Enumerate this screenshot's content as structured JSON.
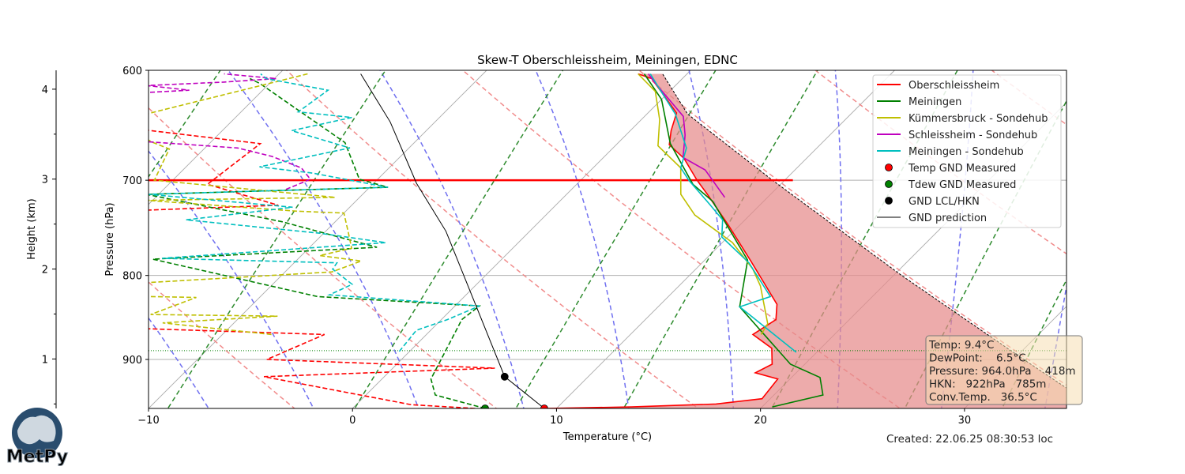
{
  "chart_data": {
    "type": "line",
    "subtype": "skew-t",
    "title": "Skew-T Oberschleissheim, Meiningen, EDNC",
    "xlabel": "Temperature (°C)",
    "ylabel": "Pressure (hPa)",
    "xlim": [
      -10,
      35
    ],
    "ylim": [
      964,
      600
    ],
    "x_ticks": [
      -10,
      0,
      10,
      20,
      30
    ],
    "y_ticks": [
      600,
      700,
      800,
      900
    ],
    "height_axis": {
      "label": "Height (km)",
      "range": [
        0.45,
        4.21
      ],
      "ticks": [
        1,
        2,
        3,
        4
      ],
      "minor_ticks": [
        0.5,
        1.5,
        2.5,
        3.5
      ]
    },
    "legend_position": "top-right",
    "series": [
      {
        "name": "Oberschleissheim",
        "color": "#ff0000",
        "temperature": [
          [
            964,
            9.4
          ],
          [
            962,
            13.6
          ],
          [
            958,
            17.6
          ],
          [
            951,
            19.6
          ],
          [
            925,
            19.4
          ],
          [
            917,
            18.0
          ],
          [
            906,
            18.4
          ],
          [
            886,
            17.6
          ],
          [
            869,
            16.0
          ],
          [
            851,
            16.4
          ],
          [
            833,
            15.7
          ],
          [
            784,
            12.3
          ],
          [
            745,
            9.4
          ],
          [
            714,
            6.9
          ],
          [
            700,
            5.7
          ],
          [
            679,
            4.0
          ],
          [
            666,
            2.6
          ],
          [
            653,
            2.0
          ],
          [
            637,
            1.4
          ],
          [
            607,
            -1.5
          ],
          [
            603,
            -2.4
          ]
        ],
        "dewpoint": [
          [
            964,
            6.0
          ],
          [
            959,
            2.7
          ],
          [
            922,
            -5.9
          ],
          [
            911,
            5.0
          ],
          [
            900,
            -6.6
          ],
          [
            869,
            -5.0
          ],
          [
            862,
            -14.0
          ],
          [
            793,
            -18.3
          ],
          [
            730,
            -19.8
          ],
          [
            725,
            -13.6
          ],
          [
            704,
            -18.1
          ],
          [
            665,
            -17.5
          ],
          [
            652,
            -24.0
          ]
        ]
      },
      {
        "name": "Meiningen",
        "color": "#008000",
        "temperature": [
          [
            962,
            20.5
          ],
          [
            946,
            22.4
          ],
          [
            923,
            21.4
          ],
          [
            906,
            19.3
          ],
          [
            867,
            16.4
          ],
          [
            836,
            14.0
          ],
          [
            783,
            12.1
          ],
          [
            721,
            7.5
          ],
          [
            704,
            5.7
          ],
          [
            665,
            2.6
          ],
          [
            625,
            0.0
          ],
          [
            603,
            -2.1
          ]
        ],
        "dewpoint": [
          [
            964,
            6.5
          ],
          [
            946,
            3.4
          ],
          [
            925,
            2.4
          ],
          [
            851,
            1.0
          ],
          [
            835,
            1.2
          ],
          [
            824,
            -7.2
          ],
          [
            782,
            -17.1
          ],
          [
            769,
            -6.7
          ],
          [
            742,
            -12.6
          ],
          [
            714,
            -20.6
          ],
          [
            707,
            -9.1
          ],
          [
            699,
            -10.9
          ],
          [
            664,
            -13.4
          ],
          [
            611,
            -20.5
          ],
          [
            607,
            -21.2
          ]
        ]
      },
      {
        "name": "Kümmersbruck - Sondehub",
        "color": "#bfbf00",
        "temperature": [
          [
            869,
            16.4
          ],
          [
            856,
            16.2
          ],
          [
            812,
            14.0
          ],
          [
            793,
            12.8
          ],
          [
            764,
            10.5
          ],
          [
            735,
            7.3
          ],
          [
            714,
            5.6
          ],
          [
            688,
            4.3
          ],
          [
            667,
            2.1
          ],
          [
            643,
            0.9
          ],
          [
            618,
            -0.7
          ],
          [
            603,
            -2.4
          ]
        ],
        "dewpoint": [
          [
            869,
            -7.6
          ],
          [
            855,
            -13.5
          ],
          [
            847,
            -8.2
          ],
          [
            845,
            -14.5
          ],
          [
            825,
            -13.1
          ],
          [
            824,
            -15.4
          ],
          [
            818,
            -17.2
          ],
          [
            808,
            -16.2
          ],
          [
            796,
            -7.7
          ],
          [
            784,
            -6.8
          ],
          [
            778,
            -9.1
          ],
          [
            770,
            -7.9
          ],
          [
            752,
            -8.9
          ],
          [
            733,
            -10.0
          ],
          [
            731,
            -12.4
          ],
          [
            720,
            -20.3
          ],
          [
            717,
            -11.2
          ],
          [
            700,
            -20.9
          ],
          [
            670,
            -21.7
          ],
          [
            664,
            -22.8
          ],
          [
            645,
            -25.7
          ],
          [
            607,
            -19.3
          ],
          [
            603,
            -18.6
          ]
        ]
      },
      {
        "name": "Schleissheim - Sondehub",
        "color": "#bf00bf",
        "temperature": [
          [
            717,
            7.9
          ],
          [
            690,
            5.6
          ],
          [
            678,
            3.9
          ],
          [
            657,
            2.9
          ],
          [
            640,
            1.9
          ],
          [
            610,
            -1.2
          ],
          [
            603,
            -1.9
          ]
        ],
        "dewpoint": [
          [
            709,
            -14.0
          ],
          [
            699,
            -13.3
          ],
          [
            688,
            -14.3
          ],
          [
            677,
            -16.3
          ],
          [
            669,
            -18.4
          ],
          [
            663,
            -23.3
          ],
          [
            638,
            -26.1
          ],
          [
            619,
            -25.6
          ],
          [
            617,
            -23.6
          ],
          [
            613,
            -25.9
          ],
          [
            610,
            -22.3
          ],
          [
            607,
            -19.9
          ],
          [
            603,
            -22.7
          ]
        ]
      },
      {
        "name": "Meiningen - Sondehub",
        "color": "#00bfbf",
        "temperature": [
          [
            891,
            19.0
          ],
          [
            836,
            14.0
          ],
          [
            824,
            15.0
          ],
          [
            786,
            12.3
          ],
          [
            758,
            9.7
          ],
          [
            740,
            8.9
          ],
          [
            724,
            7.5
          ],
          [
            700,
            5.3
          ],
          [
            688,
            4.3
          ],
          [
            669,
            3.6
          ],
          [
            638,
            1.4
          ],
          [
            616,
            -0.6
          ],
          [
            603,
            -1.8
          ]
        ],
        "dewpoint": [
          [
            890,
            -0.5
          ],
          [
            864,
            -0.7
          ],
          [
            851,
            0.3
          ],
          [
            835,
            1.2
          ],
          [
            822,
            -6.7
          ],
          [
            810,
            -6.1
          ],
          [
            793,
            -7.8
          ],
          [
            786,
            -7.9
          ],
          [
            781,
            -16.7
          ],
          [
            764,
            -6.5
          ],
          [
            754,
            -10.2
          ],
          [
            740,
            -17.4
          ],
          [
            727,
            -12.8
          ],
          [
            714,
            -20.5
          ],
          [
            707,
            -9.1
          ],
          [
            693,
            -13.5
          ],
          [
            687,
            -16.4
          ],
          [
            669,
            -12.9
          ],
          [
            653,
            -16.6
          ],
          [
            641,
            -14.3
          ],
          [
            636,
            -17.2
          ],
          [
            617,
            -16.8
          ],
          [
            607,
            -20.4
          ],
          [
            603,
            -20.9
          ]
        ]
      }
    ],
    "gnd_prediction": {
      "name": "GND prediction",
      "points": [
        [
          964,
          9.4
        ],
        [
          922,
          5.9
        ],
        [
          752,
          -4.1
        ],
        [
          703,
          -7.9
        ],
        [
          645,
          -12.2
        ],
        [
          603,
          -16.0
        ]
      ]
    },
    "convective_parcel": [
      [
        964,
        36.5
      ],
      [
        900,
        30.5
      ],
      [
        800,
        20.4
      ],
      [
        700,
        9.4
      ],
      [
        638,
        2.0
      ],
      [
        603,
        -1.2
      ]
    ],
    "markers": [
      {
        "name": "Temp GND Measured",
        "p": 964,
        "t": 9.4,
        "color": "#ff0000"
      },
      {
        "name": "Tdew GND Measured",
        "p": 964,
        "t": 6.5,
        "color": "#008000"
      },
      {
        "name": "GND LCL/HKN",
        "p": 922,
        "t": 5.9,
        "color": "#000000"
      }
    ],
    "reference_line_700": {
      "p": 700,
      "t_end": 10.4,
      "color": "#ff0000"
    },
    "dotted_level_hpa": 889,
    "background": {
      "dry_adiabats_theta_c_at_1000": [
        -60,
        -50,
        -40,
        -30,
        -20,
        -10,
        0,
        10,
        20,
        30,
        40,
        50,
        60,
        70,
        80,
        90
      ],
      "moist_adiabats_t_c_at_1000": [
        -10,
        -5,
        0,
        5,
        10,
        15,
        20,
        25,
        30,
        35,
        40,
        45
      ],
      "mixing_ratios": [
        0.0004,
        0.001,
        0.002,
        0.004,
        0.007,
        0.01,
        0.016,
        0.024,
        0.032
      ]
    }
  },
  "legend": [
    {
      "label": "Oberschleissheim",
      "kind": "line",
      "color": "#ff0000"
    },
    {
      "label": "Meiningen",
      "kind": "line",
      "color": "#008000"
    },
    {
      "label": "Kümmersbruck - Sondehub",
      "kind": "line",
      "color": "#bfbf00"
    },
    {
      "label": "Schleissheim - Sondehub",
      "kind": "line",
      "color": "#bf00bf"
    },
    {
      "label": "Meiningen - Sondehub",
      "kind": "line",
      "color": "#00bfbf"
    },
    {
      "label": "Temp GND Measured",
      "kind": "dot",
      "color": "#ff0000"
    },
    {
      "label": "Tdew GND Measured",
      "kind": "dot",
      "color": "#008000"
    },
    {
      "label": "GND LCL/HKN",
      "kind": "dot",
      "color": "#000000"
    },
    {
      "label": "GND prediction",
      "kind": "thin",
      "color": "#000000"
    }
  ],
  "info_box": {
    "lines": [
      "Temp: 9.4°C",
      "DewPoint:    6.5°C",
      "Pressure: 964.0hPa    418m",
      "HKN:   922hPa   785m",
      "Conv.Temp.   36.5°C"
    ]
  },
  "created": "Created: 22.06.25 08:30:53 loc",
  "logo": {
    "text": "MetPy"
  }
}
